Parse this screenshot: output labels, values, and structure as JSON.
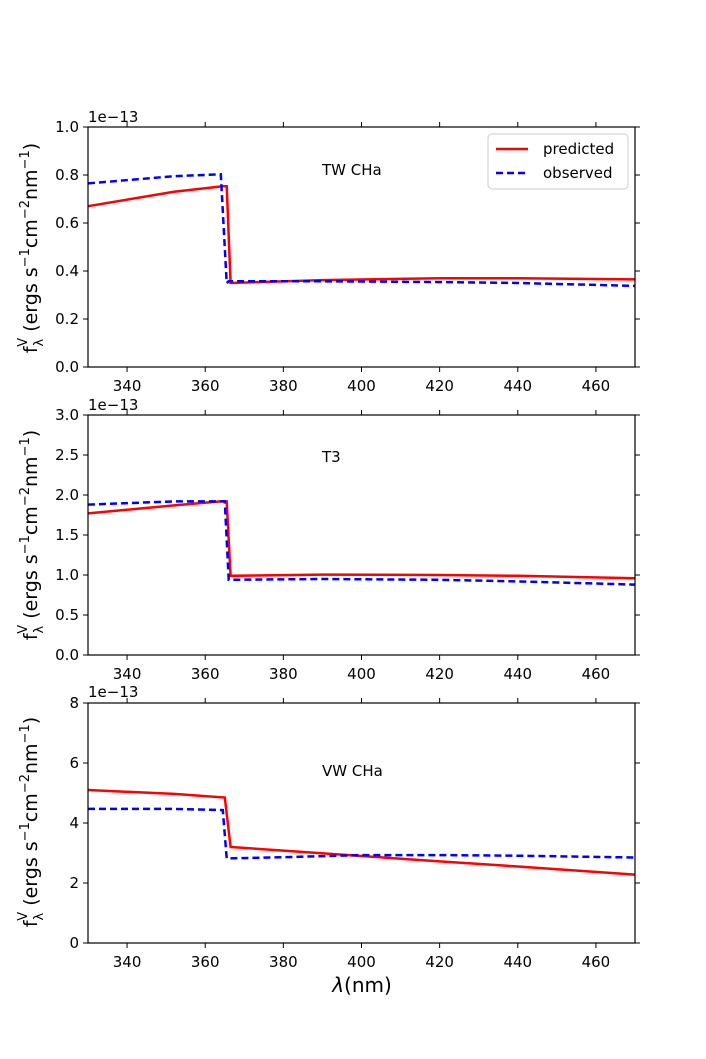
{
  "figure": {
    "xlabel_symbol": "λ",
    "xlabel_unit": "(nm)",
    "ylabel": {
      "base": "f",
      "sub": "λ",
      "sup": "V",
      "open": " (ergs s",
      "exp1": "−1",
      "mid": "cm",
      "exp2": "−2",
      "nm": "nm",
      "exp3": "−1",
      "close": ")"
    },
    "legend": {
      "placement": "top-right",
      "entries": [
        {
          "label": "predicted",
          "color": "#ff0000",
          "style": "solid"
        },
        {
          "label": "observed",
          "color": "#0000ff",
          "style": "dashed"
        }
      ]
    }
  },
  "chart_data": [
    {
      "type": "line",
      "annotation": "TW CHa",
      "offset_label": "1e−13",
      "xlim": [
        330,
        470
      ],
      "ylim": [
        0,
        1.0
      ],
      "xticks": [
        340,
        360,
        380,
        400,
        420,
        440,
        460
      ],
      "yticks": [
        0.0,
        0.2,
        0.4,
        0.6,
        0.8,
        1.0
      ],
      "ytick_labels": [
        "0.0",
        "0.2",
        "0.4",
        "0.6",
        "0.8",
        "1.0"
      ],
      "series": [
        {
          "name": "predicted",
          "color": "#ff0000",
          "style": "solid",
          "x": [
            330,
            352,
            364.5,
            365.5,
            366.5,
            390,
            420,
            440,
            470
          ],
          "y": [
            0.67,
            0.73,
            0.753,
            0.753,
            0.35,
            0.362,
            0.37,
            0.37,
            0.365
          ]
        },
        {
          "name": "observed",
          "color": "#0000ff",
          "style": "dashed",
          "x": [
            330,
            352,
            364,
            365.5,
            366,
            390,
            420,
            440,
            470
          ],
          "y": [
            0.765,
            0.795,
            0.803,
            0.35,
            0.357,
            0.357,
            0.354,
            0.35,
            0.338
          ]
        }
      ]
    },
    {
      "type": "line",
      "annotation": "T3",
      "offset_label": "1e−13",
      "xlim": [
        330,
        470
      ],
      "ylim": [
        0,
        3.0
      ],
      "xticks": [
        340,
        360,
        380,
        400,
        420,
        440,
        460
      ],
      "yticks": [
        0.0,
        0.5,
        1.0,
        1.5,
        2.0,
        2.5,
        3.0
      ],
      "ytick_labels": [
        "0.0",
        "0.5",
        "1.0",
        "1.5",
        "2.0",
        "2.5",
        "3.0"
      ],
      "series": [
        {
          "name": "predicted",
          "color": "#ff0000",
          "style": "solid",
          "x": [
            330,
            352,
            364,
            365.5,
            366.5,
            390,
            420,
            440,
            470
          ],
          "y": [
            1.77,
            1.87,
            1.92,
            1.92,
            0.99,
            1.005,
            1.0,
            0.99,
            0.96
          ]
        },
        {
          "name": "observed",
          "color": "#0000ff",
          "style": "dashed",
          "x": [
            330,
            352,
            364,
            365,
            366,
            390,
            420,
            440,
            470
          ],
          "y": [
            1.88,
            1.92,
            1.92,
            1.92,
            0.94,
            0.95,
            0.94,
            0.92,
            0.88
          ]
        }
      ]
    },
    {
      "type": "line",
      "annotation": "VW CHa",
      "offset_label": "1e−13",
      "xlim": [
        330,
        470
      ],
      "ylim": [
        0,
        8
      ],
      "xticks": [
        340,
        360,
        380,
        400,
        420,
        440,
        460
      ],
      "yticks": [
        0,
        2,
        4,
        6,
        8
      ],
      "ytick_labels": [
        "0",
        "2",
        "4",
        "6",
        "8"
      ],
      "series": [
        {
          "name": "predicted",
          "color": "#ff0000",
          "style": "solid",
          "x": [
            330,
            352,
            365,
            366.5,
            380,
            400,
            420,
            440,
            470
          ],
          "y": [
            5.1,
            4.97,
            4.85,
            3.2,
            3.08,
            2.9,
            2.72,
            2.55,
            2.28
          ]
        },
        {
          "name": "observed",
          "color": "#0000ff",
          "style": "dashed",
          "x": [
            330,
            352,
            364.5,
            365.5,
            380,
            400,
            420,
            440,
            470
          ],
          "y": [
            4.47,
            4.47,
            4.43,
            2.82,
            2.86,
            2.93,
            2.93,
            2.91,
            2.85
          ]
        }
      ]
    }
  ]
}
